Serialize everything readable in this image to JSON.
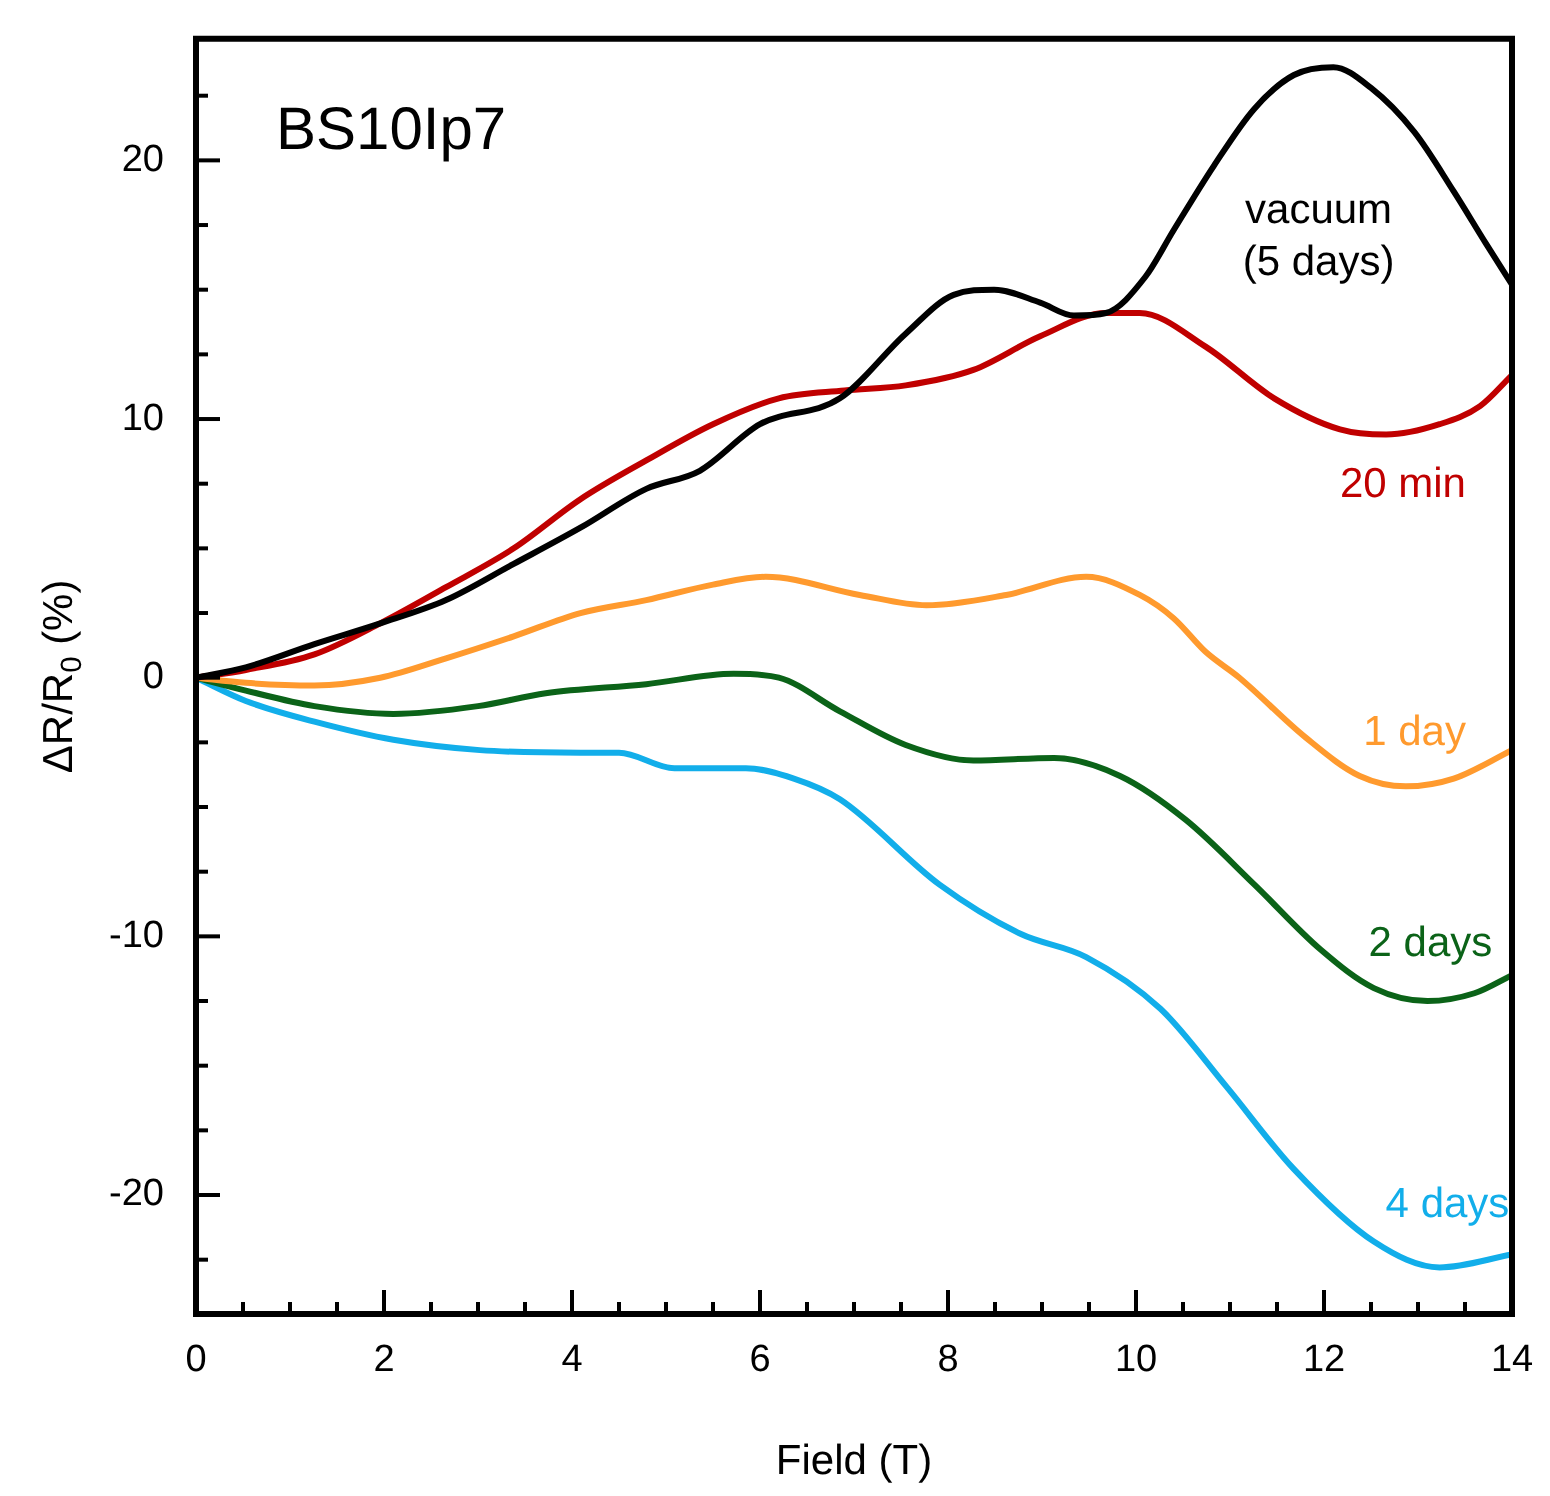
{
  "chart_data": {
    "type": "line",
    "xlabel": "Field (T)",
    "ylabel": "ΔR/R$_{0}$ (%)",
    "annotations": [
      "BS10Ip7"
    ],
    "xlim": [
      0,
      14
    ],
    "ylim": [
      -24.6,
      24.7
    ],
    "xticks": [
      0,
      {
        "value": 0.5,
        "label": null
      },
      {
        "value": 1,
        "label": null
      },
      {
        "value": 1.5,
        "label": null
      },
      2,
      {
        "value": 2.5,
        "label": null
      },
      {
        "value": 3,
        "label": null
      },
      {
        "value": 3.5,
        "label": null
      },
      4,
      {
        "value": 4.5,
        "label": null
      },
      {
        "value": 5,
        "label": null
      },
      {
        "value": 5.5,
        "label": null
      },
      6,
      {
        "value": 6.5,
        "label": null
      },
      {
        "value": 7,
        "label": null
      },
      {
        "value": 7.5,
        "label": null
      },
      8,
      {
        "value": 8.5,
        "label": null
      },
      {
        "value": 9,
        "label": null
      },
      {
        "value": 9.5,
        "label": null
      },
      10,
      {
        "value": 10.5,
        "label": null
      },
      {
        "value": 11,
        "label": null
      },
      {
        "value": 11.5,
        "label": null
      },
      12,
      {
        "value": 12.5,
        "label": null
      },
      {
        "value": 13,
        "label": null
      },
      {
        "value": 13.5,
        "label": null
      },
      14
    ],
    "yticks": [
      {
        "value": -22.5,
        "label": null
      },
      -20,
      {
        "value": -17.5,
        "label": null
      },
      {
        "value": -15,
        "label": null
      },
      {
        "value": -12.5,
        "label": null
      },
      -10,
      {
        "value": -7.5,
        "label": null
      },
      {
        "value": -5,
        "label": null
      },
      {
        "value": -2.5,
        "label": null
      },
      0,
      {
        "value": 2.5,
        "label": null
      },
      {
        "value": 5,
        "label": null
      },
      {
        "value": 7.5,
        "label": null
      },
      10,
      {
        "value": 12.5,
        "label": null
      },
      {
        "value": 15,
        "label": null
      },
      {
        "value": 17.5,
        "label": null
      },
      20,
      {
        "value": 22.5,
        "label": null
      }
    ],
    "grid": false,
    "legend": false,
    "marker": "none",
    "line_style": "solid",
    "series": [
      {
        "name": "vacuum (5 days)",
        "color": "#000000",
        "x": [
          0,
          0.53,
          1.26,
          1.96,
          2.66,
          3.38,
          4.09,
          4.79,
          5.36,
          6.0,
          6.85,
          7.55,
          8.06,
          8.49,
          8.98,
          9.34,
          9.68,
          10.1,
          10.4,
          10.83,
          11.26,
          11.68,
          12.1,
          12.5,
          12.96,
          13.38,
          13.72,
          14
        ],
        "values": [
          0,
          0.4,
          1.3,
          2.1,
          3.0,
          4.4,
          5.8,
          7.3,
          8.0,
          9.8,
          10.8,
          13.3,
          14.8,
          15.0,
          14.5,
          14.0,
          14.1,
          15.5,
          17.3,
          19.8,
          22.0,
          23.3,
          23.6,
          22.8,
          21.1,
          18.8,
          16.8,
          15.2
        ]
      },
      {
        "name": "20 min",
        "color": "#c00000",
        "x": [
          0,
          0.53,
          1.26,
          1.96,
          2.66,
          3.38,
          4.09,
          4.79,
          5.5,
          6.2,
          6.9,
          7.55,
          8.27,
          8.98,
          9.68,
          10.04,
          10.74,
          11.47,
          12.17,
          12.66,
          13.23,
          13.66,
          14
        ],
        "values": [
          0,
          0.3,
          0.9,
          2.1,
          3.5,
          5.0,
          6.9,
          8.4,
          9.8,
          10.8,
          11.1,
          11.3,
          11.9,
          13.2,
          14.1,
          14.1,
          12.8,
          10.8,
          9.6,
          9.4,
          9.8,
          10.5,
          11.7
        ]
      },
      {
        "name": "1 day",
        "color": "#ff9a2e",
        "x": [
          0,
          0.53,
          1.26,
          1.96,
          2.66,
          3.38,
          4.09,
          4.79,
          5.5,
          6.06,
          7.06,
          7.77,
          8.62,
          9.47,
          10.04,
          10.4,
          10.74,
          11.1,
          11.8,
          12.38,
          12.87,
          13.38,
          14
        ],
        "values": [
          0,
          -0.2,
          -0.3,
          0,
          0.75,
          1.6,
          2.5,
          3.0,
          3.6,
          3.9,
          3.2,
          2.8,
          3.2,
          3.9,
          3.2,
          2.3,
          1.0,
          0,
          -2.3,
          -3.8,
          -4.2,
          -3.9,
          -2.8
        ]
      },
      {
        "name": "2 days",
        "color": "#0b6318",
        "x": [
          0,
          0.53,
          1.26,
          2.1,
          3.0,
          3.72,
          4.79,
          5.72,
          6.2,
          6.85,
          7.55,
          8.27,
          9.13,
          9.83,
          10.53,
          11.26,
          11.96,
          12.53,
          13.1,
          13.6,
          14
        ],
        "values": [
          0,
          -0.5,
          -1.1,
          -1.4,
          -1.1,
          -0.6,
          -0.25,
          0.15,
          0,
          -1.3,
          -2.6,
          -3.2,
          -3.1,
          -3.8,
          -5.5,
          -8.0,
          -10.5,
          -12.0,
          -12.5,
          -12.2,
          -11.5
        ]
      },
      {
        "name": "4 days",
        "color": "#12aeea",
        "x": [
          0,
          0.53,
          1.26,
          2.1,
          3.02,
          4.09,
          4.5,
          5.09,
          5.85,
          6.36,
          6.85,
          7.91,
          8.77,
          9.47,
          10.26,
          10.96,
          11.68,
          12.53,
          13.23,
          14
        ],
        "values": [
          0,
          -0.9,
          -1.7,
          -2.4,
          -2.8,
          -2.9,
          -2.9,
          -3.5,
          -3.5,
          -3.9,
          -4.7,
          -8.0,
          -9.9,
          -10.8,
          -12.8,
          -15.8,
          -19.0,
          -21.8,
          -22.8,
          -22.3
        ]
      }
    ]
  }
}
